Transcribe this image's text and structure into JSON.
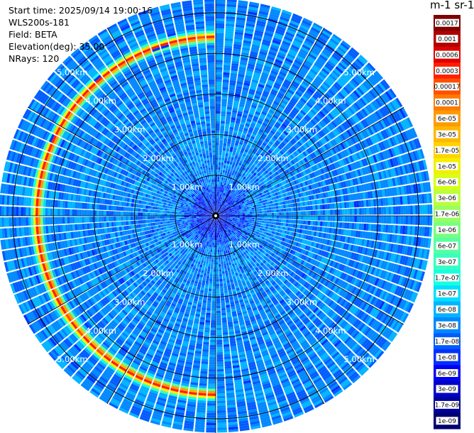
{
  "header": {
    "start_time": "Start time: 2025/09/14 19:00:16",
    "instrument": "WLS200s-181",
    "field": "Field: BETA",
    "elevation": "Elevation(deg): 35.00",
    "nrays": "NRays: 120"
  },
  "colorbar": {
    "title": "m-1 sr-1",
    "labels": [
      "0.0017",
      "0.001",
      "0.0006",
      "0.0003",
      "0.00017",
      "0.0001",
      "6e-05",
      "3e-05",
      "1.7e-05",
      "1e-05",
      "6e-06",
      "3e-06",
      "1.7e-06",
      "1e-06",
      "6e-07",
      "3e-07",
      "1.7e-07",
      "1e-07",
      "6e-08",
      "3e-08",
      "1.7e-08",
      "1e-08",
      "6e-09",
      "3e-09",
      "1.7e-09",
      "1e-09"
    ],
    "colors": [
      "#800000",
      "#b00000",
      "#e00000",
      "#ff2000",
      "#ff5000",
      "#ff7a00",
      "#ff9a00",
      "#ffb800",
      "#ffd400",
      "#f2f000",
      "#d8ff1a",
      "#b8ff40",
      "#98ff60",
      "#78ff80",
      "#58ffa0",
      "#38ffc0",
      "#18ffe0",
      "#00e0ff",
      "#00b4ff",
      "#0088ff",
      "#005cff",
      "#0030ff",
      "#0000f4",
      "#0000c8",
      "#00009c",
      "#000070"
    ]
  },
  "chart_data": {
    "type": "heatmap",
    "projection": "polar-ppi",
    "field": "BETA",
    "elevation_deg": 35.0,
    "n_rays": 120,
    "max_range_km": 5.3,
    "range_rings_km": [
      1.0,
      2.0,
      3.0,
      4.0,
      5.0
    ],
    "ring_labels": [
      "1.00km",
      "2.00km",
      "3.00km",
      "4.00km",
      "5.00km"
    ],
    "spoke_angles_deg": [
      0,
      30,
      60,
      90,
      120,
      150,
      180,
      210,
      240,
      270,
      300,
      330
    ],
    "background_beta": 3e-08,
    "near_field_beta": 1.7e-09,
    "enhanced_layer": {
      "range_km": 4.4,
      "peak_beta": 0.0003,
      "azimuth_start_deg": 180,
      "azimuth_end_deg": 360
    },
    "colorscale": "log",
    "color_range": [
      1e-09,
      0.0017
    ]
  }
}
